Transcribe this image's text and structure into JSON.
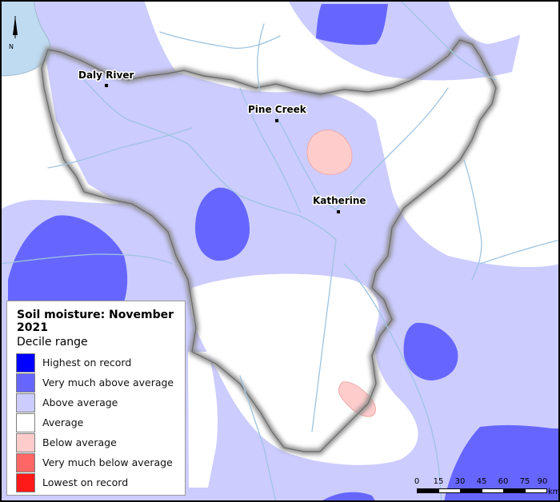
{
  "legend": {
    "title": "Soil moisture: November 2021",
    "subtitle": "Decile range",
    "items": [
      {
        "label": "Highest on record",
        "color": "#0000ff"
      },
      {
        "label": "Very much above average",
        "color": "#6666ff"
      },
      {
        "label": "Above average",
        "color": "#ccccff"
      },
      {
        "label": "Average",
        "color": "#ffffff"
      },
      {
        "label": "Below average",
        "color": "#ffcccc"
      },
      {
        "label": "Very much below average",
        "color": "#ff6666"
      },
      {
        "label": "Lowest on record",
        "color": "#ff1a1a"
      }
    ]
  },
  "places": [
    {
      "name": "Daly River"
    },
    {
      "name": "Pine Creek"
    },
    {
      "name": "Katherine"
    }
  ],
  "north_arrow": {
    "label": "N"
  },
  "scale_bar": {
    "ticks": [
      "0",
      "15",
      "30",
      "45",
      "60",
      "75",
      "90"
    ],
    "unit": "km"
  },
  "colors": {
    "water": "#bfdbf2",
    "river": "#9fc4e0",
    "mask_shadow": "#8a8a8a",
    "frame": "#000000"
  }
}
